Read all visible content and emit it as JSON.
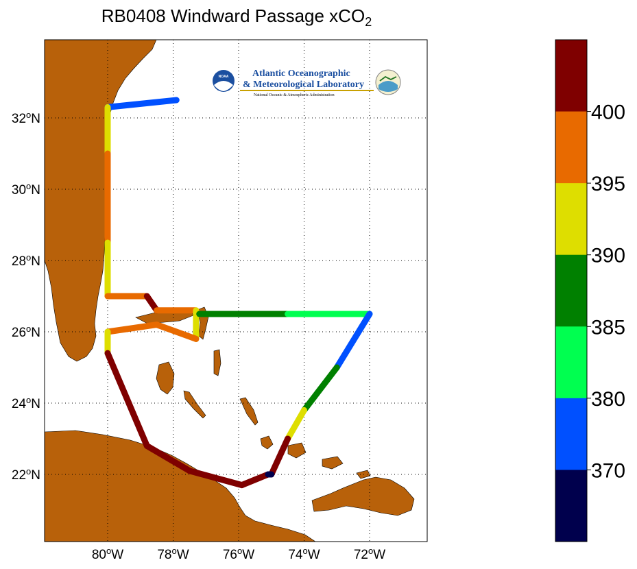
{
  "map": {
    "title_main": "RB0408 Windward Passage xCO",
    "title_sub": "2",
    "lat_labels": [
      {
        "value": 32,
        "text": "32oN"
      },
      {
        "value": 30,
        "text": "30oN"
      },
      {
        "value": 28,
        "text": "28oN"
      },
      {
        "value": 26,
        "text": "26oN"
      },
      {
        "value": 24,
        "text": "24oN"
      },
      {
        "value": 22,
        "text": "22oN"
      }
    ],
    "lon_labels": [
      {
        "value": -80,
        "text": "80oW"
      },
      {
        "value": -78,
        "text": "78oW"
      },
      {
        "value": -76,
        "text": "76oW"
      },
      {
        "value": -74,
        "text": "74oW"
      },
      {
        "value": -72,
        "text": "72oW"
      }
    ],
    "land_color": "#b8610a",
    "logo": {
      "line1": "Atlantic Oceanographic",
      "line2": "& Meteorological Laboratory",
      "line3": "National Oceanic & Atmospheric Administration",
      "badge": "NOAA"
    }
  },
  "colorbar": {
    "labels": [
      "400",
      "395",
      "390",
      "385",
      "380",
      "370"
    ],
    "bands": [
      "#7f0000",
      "#e86a00",
      "#dede00",
      "#008000",
      "#00ff50",
      "#0050ff",
      "#00004d"
    ]
  },
  "track_legs": [
    {
      "from": [
        -77.9,
        32.5
      ],
      "to": [
        -80.0,
        32.3
      ],
      "co2": 370
    },
    {
      "from": [
        -80.0,
        32.3
      ],
      "to": [
        -80.0,
        31.0
      ],
      "co2": 392
    },
    {
      "from": [
        -80.0,
        31.0
      ],
      "to": [
        -80.0,
        28.5
      ],
      "co2": 396
    },
    {
      "from": [
        -80.0,
        28.5
      ],
      "to": [
        -80.0,
        27.0
      ],
      "co2": 392
    },
    {
      "from": [
        -80.0,
        27.0
      ],
      "to": [
        -78.8,
        27.0
      ],
      "co2": 397
    },
    {
      "from": [
        -78.8,
        27.0
      ],
      "to": [
        -78.5,
        26.6
      ],
      "co2": 402
    },
    {
      "from": [
        -78.5,
        26.6
      ],
      "to": [
        -77.3,
        26.6
      ],
      "co2": 397
    },
    {
      "from": [
        -77.3,
        26.6
      ],
      "to": [
        -77.3,
        25.8
      ],
      "co2": 392
    },
    {
      "from": [
        -77.3,
        25.8
      ],
      "to": [
        -78.5,
        26.2
      ],
      "co2": 397
    },
    {
      "from": [
        -78.5,
        26.2
      ],
      "to": [
        -80.0,
        26.0
      ],
      "co2": 397
    },
    {
      "from": [
        -80.0,
        26.0
      ],
      "to": [
        -80.0,
        25.4
      ],
      "co2": 394
    },
    {
      "from": [
        -77.2,
        26.5
      ],
      "to": [
        -74.5,
        26.5
      ],
      "co2": 386
    },
    {
      "from": [
        -74.5,
        26.5
      ],
      "to": [
        -72.0,
        26.5
      ],
      "co2": 381
    },
    {
      "from": [
        -72.0,
        26.5
      ],
      "to": [
        -73.0,
        25.0
      ],
      "co2": 377
    },
    {
      "from": [
        -73.0,
        25.0
      ],
      "to": [
        -74.0,
        23.8
      ],
      "co2": 386
    },
    {
      "from": [
        -74.0,
        23.8
      ],
      "to": [
        -74.5,
        23.0
      ],
      "co2": 392
    },
    {
      "from": [
        -74.5,
        23.0
      ],
      "to": [
        -75.0,
        22.0
      ],
      "co2": 402
    },
    {
      "from": [
        -80.0,
        25.4
      ],
      "to": [
        -78.8,
        22.8
      ],
      "co2": 402
    },
    {
      "from": [
        -78.8,
        22.8
      ],
      "to": [
        -77.5,
        22.1
      ],
      "co2": 402
    },
    {
      "from": [
        -77.5,
        22.1
      ],
      "to": [
        -75.9,
        21.7
      ],
      "co2": 402
    },
    {
      "from": [
        -75.9,
        21.7
      ],
      "to": [
        -75.1,
        22.0
      ],
      "co2": 402
    },
    {
      "from": [
        -75.1,
        22.0
      ],
      "to": [
        -75.0,
        22.0
      ],
      "co2": 365
    }
  ]
}
